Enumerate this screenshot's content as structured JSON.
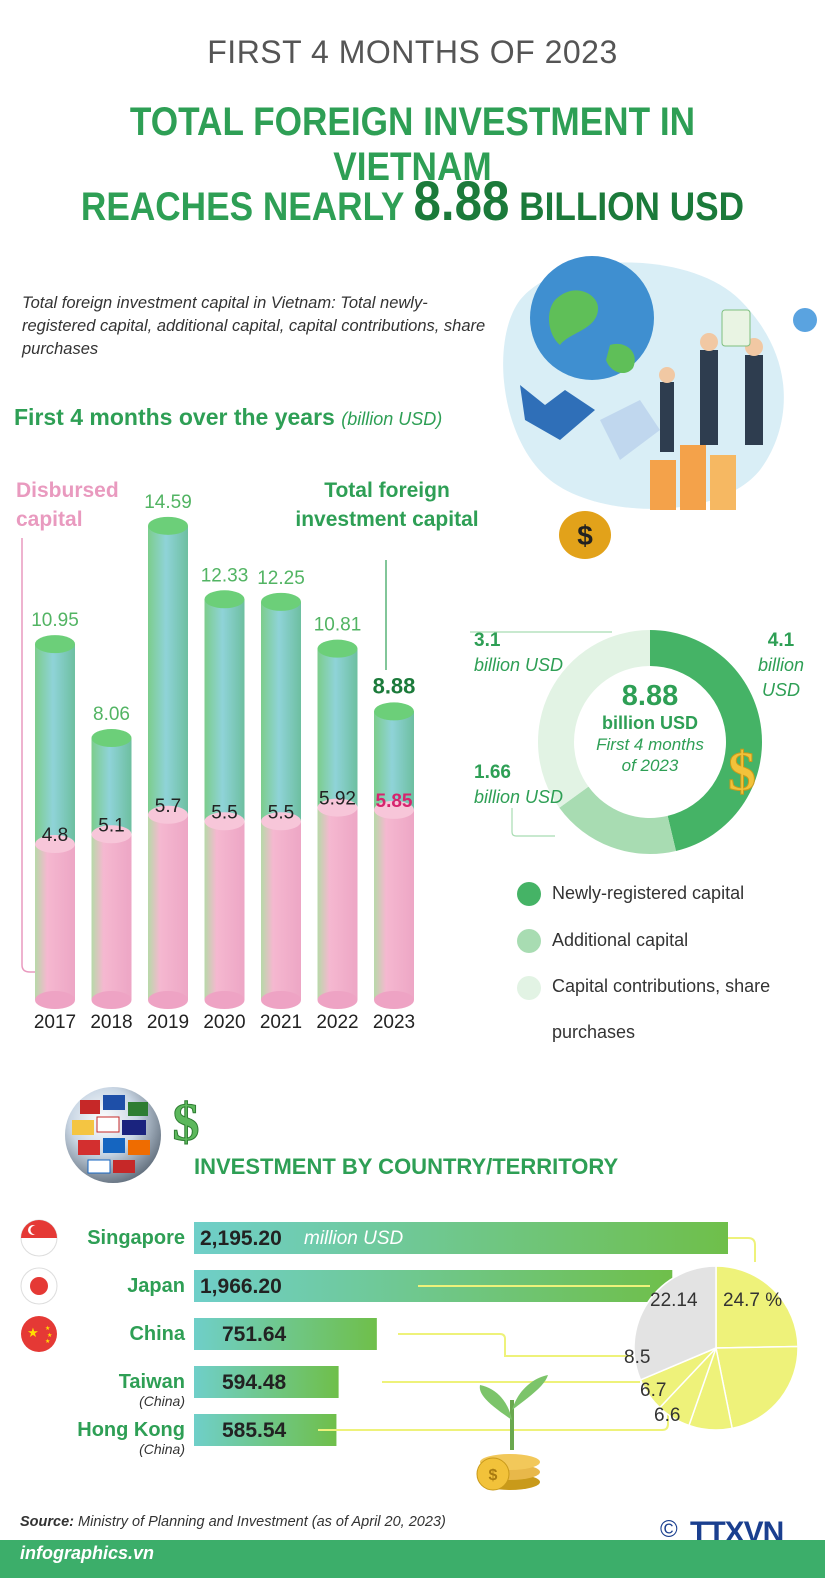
{
  "header": {
    "supertitle": "FIRST 4 MONTHS OF 2023",
    "title_line1": "TOTAL FOREIGN INVESTMENT IN VIETNAM",
    "title_line2_prefix": "REACHES NEARLY",
    "title_line2_value": "8.88",
    "title_line2_suffix": "BILLION USD"
  },
  "definition": "Total foreign investment capital in Vietnam: Total newly-registered capital, additional capital, capital contributions, share purchases",
  "years_section": {
    "heading": "First 4 months over the years",
    "unit": "(billion USD)",
    "disbursed_label_1": "Disbursed",
    "disbursed_label_2": "capital",
    "total_label_1": "Total foreign",
    "total_label_2": "investment capital"
  },
  "donut": {
    "center_value": "8.88",
    "center_unit": "billion USD",
    "center_period_1": "First 4 months",
    "center_period_2": "of 2023",
    "label_new_value": "4.1",
    "label_new_unit_1": "billion",
    "label_new_unit_2": "USD",
    "label_contrib_value": "3.1",
    "label_contrib_unit": "billion USD",
    "label_add_value": "1.66",
    "label_add_unit": "billion USD"
  },
  "legend": {
    "item1": "Newly-registered capital",
    "item2": "Additional capital",
    "item3_line1": "Capital contributions, share",
    "item3_line2": "purchases"
  },
  "country_section": {
    "heading": "INVESTMENT BY COUNTRY/TERRITORY",
    "unit": "million USD",
    "countries": [
      {
        "name": "Singapore",
        "sub": "",
        "value": "2,195.20"
      },
      {
        "name": "Japan",
        "sub": "",
        "value": "1,966.20"
      },
      {
        "name": "China",
        "sub": "",
        "value": "751.64"
      },
      {
        "name": "Taiwan",
        "sub": "(China)",
        "value": "594.48"
      },
      {
        "name": "Hong Kong",
        "sub": "(China)",
        "value": "585.54"
      }
    ],
    "pie_labels": {
      "singapore": "24.7 %",
      "japan": "22.14",
      "china": "8.5",
      "taiwan": "6.7",
      "hongkong": "6.6"
    }
  },
  "source_label": "Source:",
  "source_text": "Ministry of Planning and Investment (as of April 20, 2023)",
  "footer_site": "infographics.vn",
  "copyright": "©",
  "agency": "TTXVN",
  "colors": {
    "green": "#2e9f55",
    "dark_green": "#1b7a3a",
    "pink": "#e99abf",
    "magenta": "#d6246e",
    "donut_new": "#45b366",
    "donut_add": "#a8dcb2",
    "donut_contrib": "#e2f3e4",
    "pie_yellow": "#eef27a",
    "pie_grey": "#e3e3e3"
  },
  "chart_data": [
    {
      "type": "bar",
      "categories": [
        "2017",
        "2018",
        "2019",
        "2020",
        "2021",
        "2022",
        "2023"
      ],
      "series": [
        {
          "name": "Total foreign investment capital",
          "values": [
            10.95,
            8.06,
            14.59,
            12.33,
            12.25,
            10.81,
            8.88
          ]
        },
        {
          "name": "Disbursed capital",
          "values": [
            4.8,
            5.1,
            5.7,
            5.5,
            5.5,
            5.92,
            5.85
          ]
        }
      ],
      "title": "First 4 months over the years",
      "ylabel": "(billion USD)",
      "ylim": [
        0,
        15
      ]
    },
    {
      "type": "pie",
      "labels": [
        "Newly-registered capital",
        "Additional capital",
        "Capital contributions, share purchases"
      ],
      "values": [
        4.1,
        1.66,
        3.1
      ],
      "total": 8.88
    },
    {
      "type": "bar",
      "categories": [
        "Singapore",
        "Japan",
        "China",
        "Taiwan (China)",
        "Hong Kong (China)"
      ],
      "values": [
        2195.2,
        1966.2,
        751.64,
        594.48,
        585.54
      ],
      "title": "INVESTMENT BY COUNTRY/TERRITORY",
      "ylabel": "million USD"
    },
    {
      "type": "pie",
      "labels": [
        "Singapore",
        "Japan",
        "China",
        "Taiwan (China)",
        "Hong Kong (China)"
      ],
      "values": [
        24.7,
        22.14,
        8.5,
        6.7,
        6.6
      ]
    }
  ]
}
